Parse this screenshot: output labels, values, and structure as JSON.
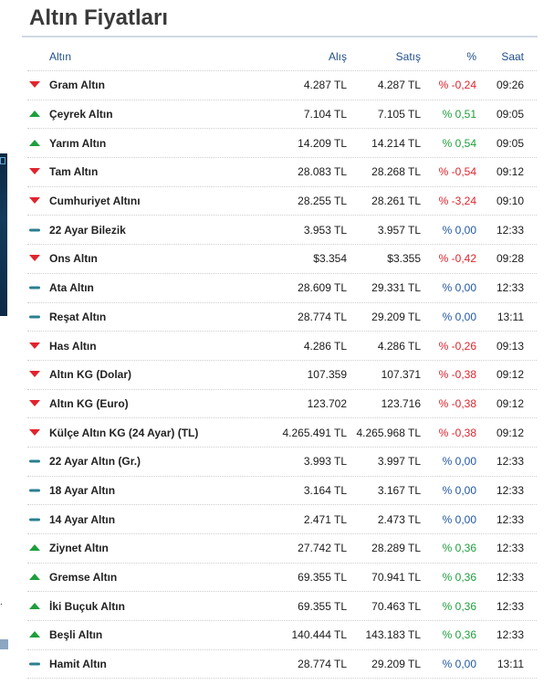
{
  "page": {
    "title": "Altın Fiyatları"
  },
  "table": {
    "headers": {
      "name": "Altın",
      "buy": "Alış",
      "sell": "Satış",
      "pct": "%",
      "time": "Saat"
    },
    "rows": [
      {
        "name": "Gram Altın",
        "buy": "4.287 TL",
        "sell": "4.287 TL",
        "pct": "% -0,24",
        "time": "09:26",
        "trend": "down"
      },
      {
        "name": "Çeyrek Altın",
        "buy": "7.104 TL",
        "sell": "7.105 TL",
        "pct": "% 0,51",
        "time": "09:05",
        "trend": "up"
      },
      {
        "name": "Yarım Altın",
        "buy": "14.209 TL",
        "sell": "14.214 TL",
        "pct": "% 0,54",
        "time": "09:05",
        "trend": "up"
      },
      {
        "name": "Tam Altın",
        "buy": "28.083 TL",
        "sell": "28.268 TL",
        "pct": "% -0,54",
        "time": "09:12",
        "trend": "down"
      },
      {
        "name": "Cumhuriyet Altını",
        "buy": "28.255 TL",
        "sell": "28.261 TL",
        "pct": "% -3,24",
        "time": "09:10",
        "trend": "down"
      },
      {
        "name": "22 Ayar Bilezik",
        "buy": "3.953 TL",
        "sell": "3.957 TL",
        "pct": "% 0,00",
        "time": "12:33",
        "trend": "flat"
      },
      {
        "name": "Ons Altın",
        "buy": "$3.354",
        "sell": "$3.355",
        "pct": "% -0,42",
        "time": "09:28",
        "trend": "down"
      },
      {
        "name": "Ata Altın",
        "buy": "28.609 TL",
        "sell": "29.331 TL",
        "pct": "% 0,00",
        "time": "12:33",
        "trend": "flat"
      },
      {
        "name": "Reşat Altın",
        "buy": "28.774 TL",
        "sell": "29.209 TL",
        "pct": "% 0,00",
        "time": "13:11",
        "trend": "flat"
      },
      {
        "name": "Has Altın",
        "buy": "4.286 TL",
        "sell": "4.286 TL",
        "pct": "% -0,26",
        "time": "09:13",
        "trend": "down"
      },
      {
        "name": "Altın KG (Dolar)",
        "buy": "107.359",
        "sell": "107.371",
        "pct": "% -0,38",
        "time": "09:12",
        "trend": "down"
      },
      {
        "name": "Altın KG (Euro)",
        "buy": "123.702",
        "sell": "123.716",
        "pct": "% -0,38",
        "time": "09:12",
        "trend": "down"
      },
      {
        "name": "Külçe Altın KG (24 Ayar) (TL)",
        "buy": "4.265.491 TL",
        "sell": "4.265.968 TL",
        "pct": "% -0,38",
        "time": "09:12",
        "trend": "down"
      },
      {
        "name": "22 Ayar Altın (Gr.)",
        "buy": "3.993 TL",
        "sell": "3.997 TL",
        "pct": "% 0,00",
        "time": "12:33",
        "trend": "flat"
      },
      {
        "name": "18 Ayar Altın",
        "buy": "3.164 TL",
        "sell": "3.167 TL",
        "pct": "% 0,00",
        "time": "12:33",
        "trend": "flat"
      },
      {
        "name": "14 Ayar Altın",
        "buy": "2.471 TL",
        "sell": "2.473 TL",
        "pct": "% 0,00",
        "time": "12:33",
        "trend": "flat"
      },
      {
        "name": "Ziynet Altın",
        "buy": "27.742 TL",
        "sell": "28.289 TL",
        "pct": "% 0,36",
        "time": "12:33",
        "trend": "up"
      },
      {
        "name": "Gremse Altın",
        "buy": "69.355 TL",
        "sell": "70.941 TL",
        "pct": "% 0,36",
        "time": "12:33",
        "trend": "up"
      },
      {
        "name": "İki Buçuk Altın",
        "buy": "69.355 TL",
        "sell": "70.463 TL",
        "pct": "% 0,36",
        "time": "12:33",
        "trend": "up"
      },
      {
        "name": "Beşli Altın",
        "buy": "140.444 TL",
        "sell": "143.183 TL",
        "pct": "% 0,36",
        "time": "12:33",
        "trend": "up"
      },
      {
        "name": "Hamit Altın",
        "buy": "28.774 TL",
        "sell": "29.209 TL",
        "pct": "% 0,00",
        "time": "13:11",
        "trend": "flat"
      }
    ]
  },
  "sidebar": {
    "fragment_text": "."
  },
  "colors": {
    "down": "#e0242d",
    "up": "#1e9e3c",
    "flat": "#2a7f8f",
    "header_text": "#1f4e8c"
  },
  "icons": {
    "down": "triangle-down-icon",
    "up": "triangle-up-icon",
    "flat": "dash-icon"
  }
}
